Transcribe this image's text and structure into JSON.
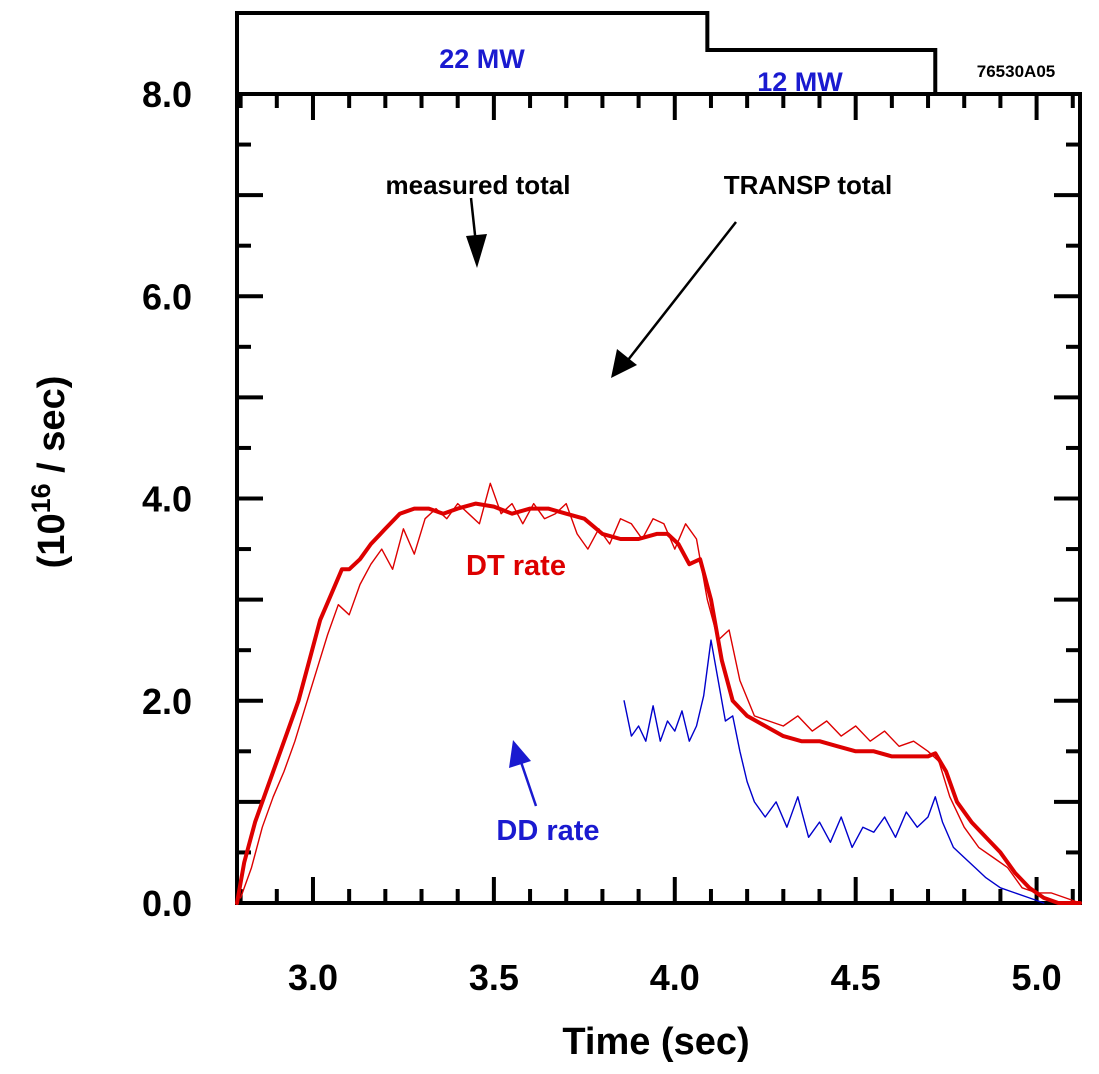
{
  "chart_data": {
    "type": "line",
    "figure_id": "76530A05",
    "xlabel": "Time (sec)",
    "ylabel": {
      "open": "(10",
      "exponent": "16",
      "rest": " / sec)"
    },
    "xlim": [
      2.79,
      5.12
    ],
    "ylim": [
      0,
      8
    ],
    "x_tick_labels": [
      "3.0",
      "3.5",
      "4.0",
      "4.5",
      "5.0"
    ],
    "x_tick_values": [
      3.0,
      3.5,
      4.0,
      4.5,
      5.0
    ],
    "y_tick_labels": [
      "0.0",
      "2.0",
      "4.0",
      "6.0",
      "8.0"
    ],
    "y_tick_values": [
      0,
      2,
      4,
      6,
      8
    ],
    "grid": false,
    "colors": {
      "dt": "#dd0000",
      "dd": "#0000cc",
      "axis": "#000000"
    },
    "power_trace": {
      "segments": [
        {
          "label": "22 MW",
          "x_start": 2.79,
          "x_end": 4.09,
          "level": "high"
        },
        {
          "label": "12 MW",
          "x_start": 4.09,
          "x_end": 4.72,
          "level": "low"
        }
      ]
    },
    "annotations": {
      "measured_total": "measured total",
      "transp_total": "TRANSP total",
      "dt_rate": "DT rate",
      "dd_rate": "DD rate"
    },
    "series": [
      {
        "key": "dt_transp",
        "color": "#dd0000",
        "style": "thick",
        "x": [
          2.79,
          2.81,
          2.84,
          2.87,
          2.9,
          2.93,
          2.96,
          2.99,
          3.02,
          3.05,
          3.08,
          3.1,
          3.13,
          3.16,
          3.2,
          3.24,
          3.28,
          3.32,
          3.36,
          3.4,
          3.45,
          3.5,
          3.55,
          3.6,
          3.65,
          3.7,
          3.75,
          3.8,
          3.85,
          3.9,
          3.95,
          3.98,
          4.01,
          4.04,
          4.07,
          4.1,
          4.13,
          4.16,
          4.2,
          4.25,
          4.3,
          4.35,
          4.4,
          4.45,
          4.5,
          4.55,
          4.6,
          4.65,
          4.7,
          4.72,
          4.75,
          4.78,
          4.82,
          4.86,
          4.9,
          4.94,
          4.98,
          5.02,
          5.06,
          5.12
        ],
        "y": [
          0.0,
          0.4,
          0.8,
          1.1,
          1.4,
          1.7,
          2.0,
          2.4,
          2.8,
          3.05,
          3.3,
          3.3,
          3.4,
          3.55,
          3.7,
          3.85,
          3.9,
          3.9,
          3.85,
          3.9,
          3.95,
          3.92,
          3.85,
          3.9,
          3.9,
          3.85,
          3.8,
          3.65,
          3.6,
          3.6,
          3.65,
          3.65,
          3.55,
          3.35,
          3.4,
          3.0,
          2.4,
          2.0,
          1.85,
          1.75,
          1.65,
          1.6,
          1.6,
          1.55,
          1.5,
          1.5,
          1.45,
          1.45,
          1.45,
          1.48,
          1.3,
          1.0,
          0.8,
          0.65,
          0.5,
          0.3,
          0.15,
          0.05,
          0.0,
          0.0
        ]
      },
      {
        "key": "dt_measured",
        "color": "#dd0000",
        "style": "thin",
        "x": [
          2.8,
          2.83,
          2.86,
          2.89,
          2.92,
          2.95,
          2.98,
          3.01,
          3.04,
          3.07,
          3.1,
          3.13,
          3.16,
          3.19,
          3.22,
          3.25,
          3.28,
          3.31,
          3.34,
          3.37,
          3.4,
          3.43,
          3.46,
          3.49,
          3.52,
          3.55,
          3.58,
          3.61,
          3.64,
          3.67,
          3.7,
          3.73,
          3.76,
          3.79,
          3.82,
          3.85,
          3.88,
          3.91,
          3.94,
          3.97,
          4.0,
          4.03,
          4.06,
          4.09,
          4.12,
          4.15,
          4.18,
          4.22,
          4.26,
          4.3,
          4.34,
          4.38,
          4.42,
          4.46,
          4.5,
          4.54,
          4.58,
          4.62,
          4.66,
          4.7,
          4.73,
          4.76,
          4.8,
          4.84,
          4.88,
          4.92,
          4.96,
          5.0,
          5.04,
          5.08,
          5.12
        ],
        "y": [
          0.05,
          0.35,
          0.75,
          1.05,
          1.3,
          1.6,
          1.95,
          2.3,
          2.65,
          2.95,
          2.85,
          3.15,
          3.35,
          3.5,
          3.3,
          3.7,
          3.45,
          3.8,
          3.9,
          3.8,
          3.95,
          3.85,
          3.75,
          4.15,
          3.85,
          3.95,
          3.75,
          3.95,
          3.8,
          3.85,
          3.95,
          3.65,
          3.5,
          3.7,
          3.55,
          3.8,
          3.75,
          3.6,
          3.8,
          3.75,
          3.5,
          3.75,
          3.6,
          3.0,
          2.6,
          2.7,
          2.2,
          1.85,
          1.8,
          1.75,
          1.85,
          1.7,
          1.8,
          1.65,
          1.75,
          1.6,
          1.7,
          1.55,
          1.6,
          1.5,
          1.4,
          1.05,
          0.75,
          0.55,
          0.45,
          0.35,
          0.15,
          0.1,
          0.1,
          0.05,
          0.0
        ]
      },
      {
        "key": "dd_measured",
        "color": "#0000cc",
        "style": "thin",
        "x": [
          3.86,
          3.88,
          3.9,
          3.92,
          3.94,
          3.96,
          3.98,
          4.0,
          4.02,
          4.04,
          4.06,
          4.08,
          4.1,
          4.12,
          4.14,
          4.16,
          4.18,
          4.2,
          4.22,
          4.25,
          4.28,
          4.31,
          4.34,
          4.37,
          4.4,
          4.43,
          4.46,
          4.49,
          4.52,
          4.55,
          4.58,
          4.61,
          4.64,
          4.67,
          4.7,
          4.72,
          4.74,
          4.77,
          4.8,
          4.83,
          4.86,
          4.9,
          4.94,
          4.98,
          5.02
        ],
        "y": [
          2.0,
          1.65,
          1.75,
          1.6,
          1.95,
          1.6,
          1.8,
          1.7,
          1.9,
          1.6,
          1.75,
          2.05,
          2.6,
          2.2,
          1.8,
          1.85,
          1.5,
          1.2,
          1.0,
          0.85,
          1.0,
          0.75,
          1.05,
          0.65,
          0.8,
          0.6,
          0.85,
          0.55,
          0.75,
          0.7,
          0.85,
          0.65,
          0.9,
          0.75,
          0.85,
          1.05,
          0.8,
          0.55,
          0.45,
          0.35,
          0.25,
          0.15,
          0.1,
          0.05,
          0.0
        ]
      }
    ]
  }
}
